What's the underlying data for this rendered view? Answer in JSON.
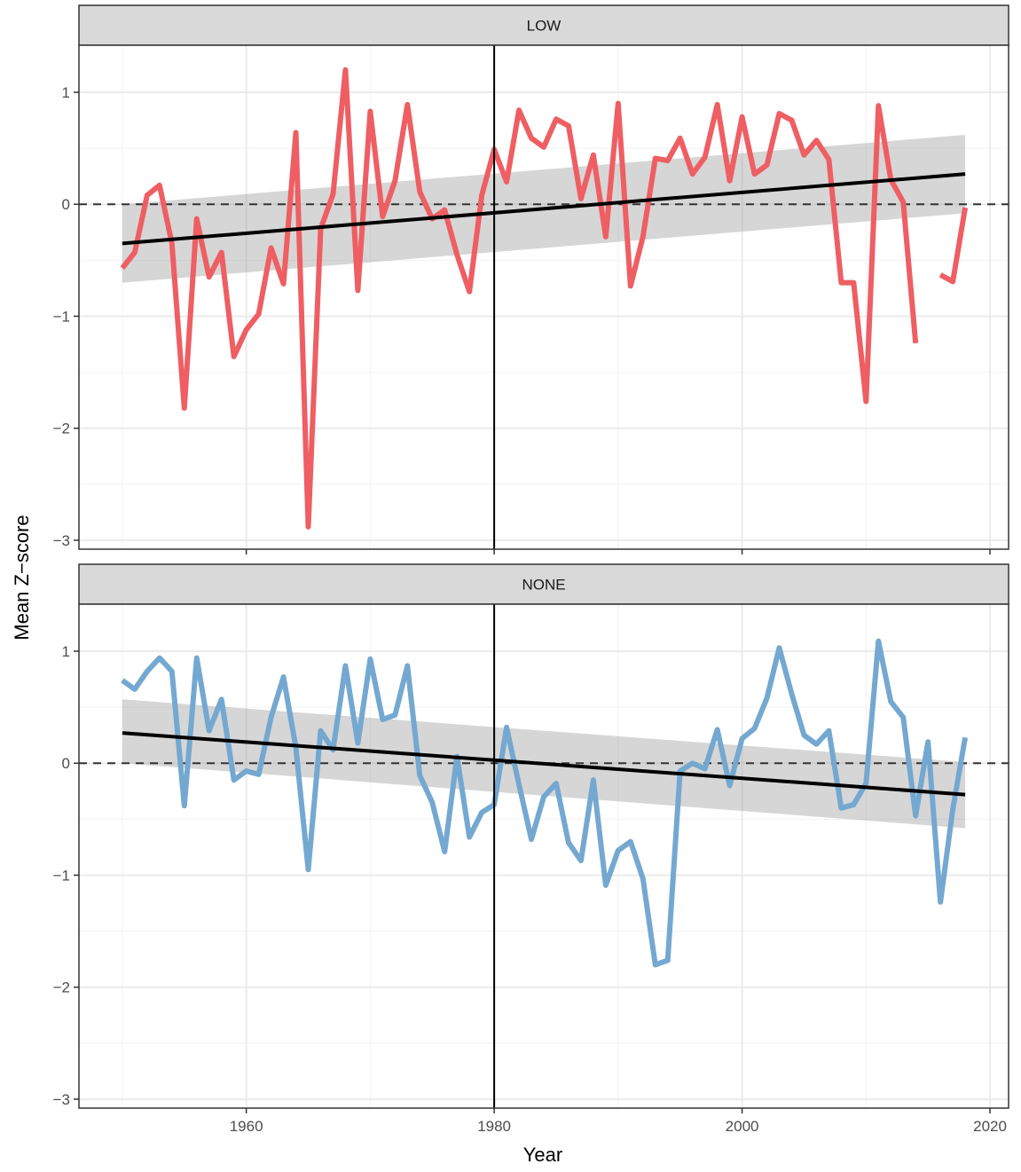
{
  "chart_data": {
    "type": "line",
    "xlabel": "Year",
    "ylabel": "Mean Z−score",
    "xlim": [
      1946.5,
      2021.5
    ],
    "ylim": [
      -3.08,
      1.42
    ],
    "x_ticks": [
      1960,
      1980,
      2000,
      2020
    ],
    "x_tick_labels": [
      "1960",
      "1980",
      "2000",
      "2020"
    ],
    "y_ticks": [
      1,
      0,
      -1,
      -2,
      -3
    ],
    "y_tick_labels": [
      "1",
      "0",
      "−1",
      "−2",
      "−3"
    ],
    "reference_hline": 0,
    "reference_vline": 1980,
    "grid": true,
    "panels": [
      {
        "strip_label": "LOW",
        "color": "#ee5e63",
        "series": {
          "x": [
            1950,
            1951,
            1952,
            1953,
            1954,
            1955,
            1956,
            1957,
            1958,
            1959,
            1960,
            1961,
            1962,
            1963,
            1964,
            1965,
            1966,
            1967,
            1968,
            1969,
            1970,
            1971,
            1972,
            1973,
            1974,
            1975,
            1976,
            1977,
            1978,
            1979,
            1980,
            1981,
            1982,
            1983,
            1984,
            1985,
            1986,
            1987,
            1988,
            1989,
            1990,
            1991,
            1992,
            1993,
            1994,
            1995,
            1996,
            1997,
            1998,
            1999,
            2000,
            2001,
            2002,
            2003,
            2004,
            2005,
            2006,
            2007,
            2008,
            2009,
            2010,
            2011,
            2012,
            2013,
            2014,
            2015,
            2016,
            2017,
            2018
          ],
          "y": [
            -0.57,
            -0.43,
            0.08,
            0.17,
            -0.35,
            -1.82,
            -0.13,
            -0.65,
            -0.43,
            -1.36,
            -1.12,
            -0.98,
            -0.39,
            -0.71,
            0.64,
            -2.88,
            -0.22,
            0.09,
            1.2,
            -0.77,
            0.83,
            -0.11,
            0.21,
            0.89,
            0.11,
            -0.13,
            -0.05,
            -0.45,
            -0.78,
            0.08,
            0.49,
            0.2,
            0.84,
            0.59,
            0.51,
            0.76,
            0.7,
            0.05,
            0.44,
            -0.29,
            0.9,
            -0.73,
            -0.29,
            0.41,
            0.39,
            0.59,
            0.27,
            0.42,
            0.89,
            0.21,
            0.78,
            0.27,
            0.35,
            0.81,
            0.75,
            0.44,
            0.57,
            0.4,
            -0.7,
            -0.7,
            -1.76,
            0.88,
            0.22,
            0.02,
            -1.24,
            null,
            -0.63,
            -0.69,
            -0.03
          ]
        },
        "trend": {
          "x": [
            1950,
            2018
          ],
          "y": [
            -0.35,
            0.27
          ]
        },
        "band": {
          "x": [
            1950,
            2018
          ],
          "upper": [
            0.0,
            0.62
          ],
          "lower": [
            -0.7,
            -0.08
          ]
        }
      },
      {
        "strip_label": "NONE",
        "color": "#74a8d0",
        "series": {
          "x": [
            1950,
            1951,
            1952,
            1953,
            1954,
            1955,
            1956,
            1957,
            1958,
            1959,
            1960,
            1961,
            1962,
            1963,
            1964,
            1965,
            1966,
            1967,
            1968,
            1969,
            1970,
            1971,
            1972,
            1973,
            1974,
            1975,
            1976,
            1977,
            1978,
            1979,
            1980,
            1981,
            1982,
            1983,
            1984,
            1985,
            1986,
            1987,
            1988,
            1989,
            1990,
            1991,
            1992,
            1993,
            1994,
            1995,
            1996,
            1997,
            1998,
            1999,
            2000,
            2001,
            2002,
            2003,
            2004,
            2005,
            2006,
            2007,
            2008,
            2009,
            2010,
            2011,
            2012,
            2013,
            2014,
            2015,
            2016,
            2017,
            2018
          ],
          "y": [
            0.74,
            0.66,
            0.82,
            0.94,
            0.82,
            -0.38,
            0.94,
            0.29,
            0.57,
            -0.15,
            -0.07,
            -0.1,
            0.41,
            0.77,
            0.14,
            -0.95,
            0.29,
            0.12,
            0.87,
            0.18,
            0.93,
            0.39,
            0.43,
            0.87,
            -0.11,
            -0.35,
            -0.79,
            0.06,
            -0.66,
            -0.44,
            -0.37,
            0.32,
            -0.19,
            -0.68,
            -0.3,
            -0.18,
            -0.71,
            -0.87,
            -0.15,
            -1.09,
            -0.78,
            -0.7,
            -1.03,
            -1.8,
            -1.76,
            -0.07,
            0.0,
            -0.05,
            0.3,
            -0.2,
            0.22,
            0.31,
            0.58,
            1.03,
            0.62,
            0.25,
            0.17,
            0.29,
            -0.4,
            -0.37,
            -0.18,
            1.09,
            0.55,
            0.41,
            -0.47,
            0.19,
            -1.24,
            -0.41,
            0.23
          ]
        },
        "trend": {
          "x": [
            1950,
            2018
          ],
          "y": [
            0.27,
            -0.28
          ]
        },
        "band": {
          "x": [
            1950,
            2018
          ],
          "upper": [
            0.57,
            0.01
          ],
          "lower": [
            0.0,
            -0.58
          ]
        }
      }
    ]
  }
}
